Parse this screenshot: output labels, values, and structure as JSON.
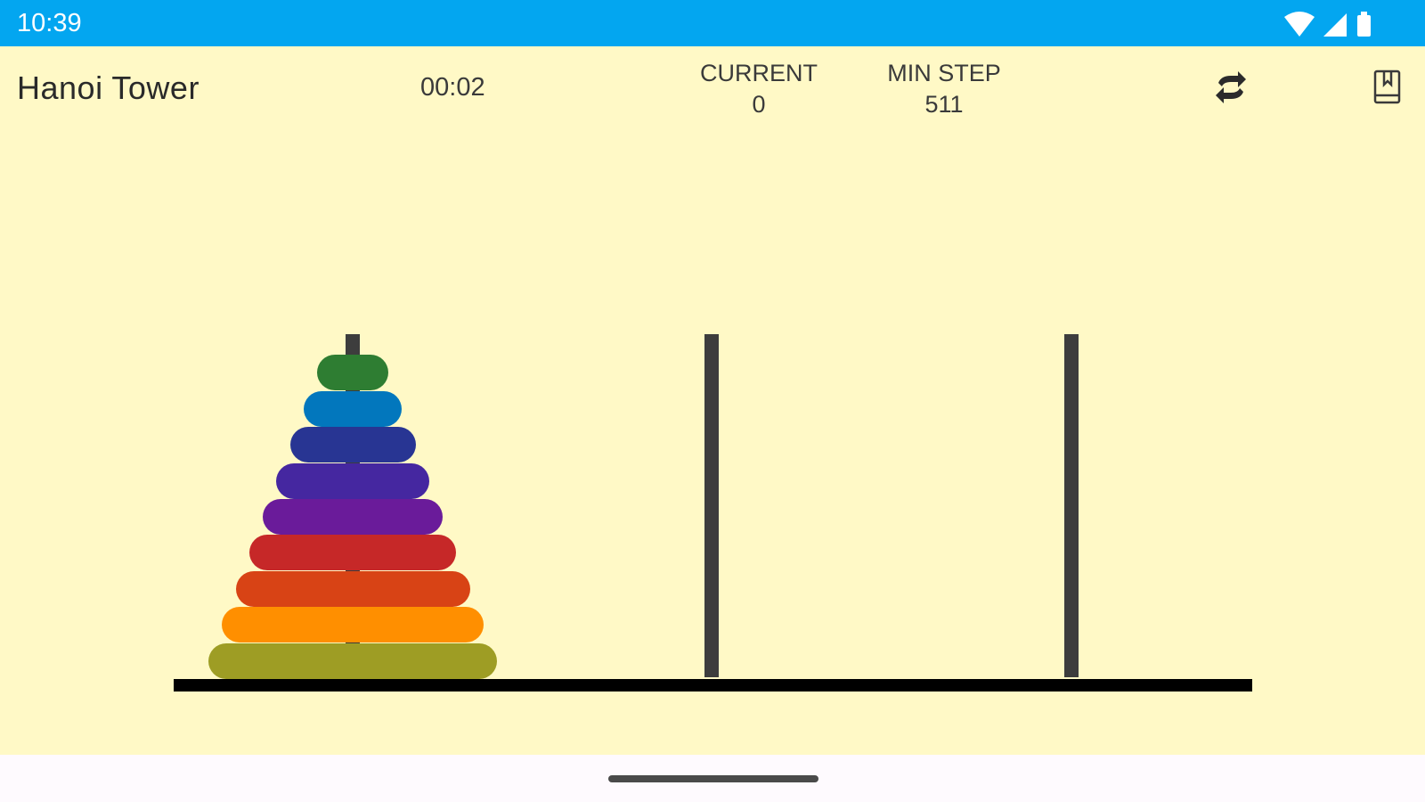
{
  "status_bar": {
    "time": "10:39",
    "icons": [
      "wifi-icon",
      "signal-icon",
      "battery-icon"
    ]
  },
  "app_bar": {
    "title": "Hanoi Tower",
    "timer": "00:02",
    "current": {
      "label": "CURRENT",
      "value": "0"
    },
    "min_step": {
      "label": "MIN STEP",
      "value": "511"
    },
    "actions": [
      "swap-icon",
      "book-icon"
    ]
  },
  "game": {
    "pegs": [
      "peg-1",
      "peg-2",
      "peg-3"
    ],
    "disk_count": 9,
    "disks_on_peg_1": [
      {
        "size": 1,
        "color": "#2E7D32"
      },
      {
        "size": 2,
        "color": "#0277BD"
      },
      {
        "size": 3,
        "color": "#283593"
      },
      {
        "size": 4,
        "color": "#4527A0"
      },
      {
        "size": 5,
        "color": "#6A1B9A"
      },
      {
        "size": 6,
        "color": "#C62828"
      },
      {
        "size": 7,
        "color": "#D84315"
      },
      {
        "size": 8,
        "color": "#FF8F00"
      },
      {
        "size": 9,
        "color": "#9E9D24"
      }
    ]
  },
  "colors": {
    "status_bar": "#03A6F0",
    "background": "#FFF9C6",
    "peg": "#3D3D3D",
    "base": "#000000"
  }
}
